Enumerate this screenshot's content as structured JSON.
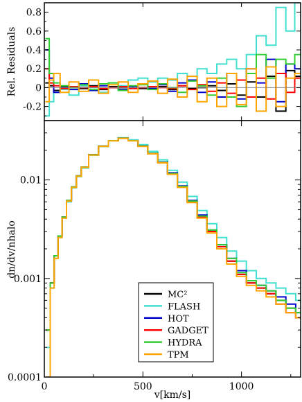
{
  "chart_data": [
    {
      "type": "line",
      "panel": "top",
      "xlabel": "",
      "ylabel": "Rel. Residuals",
      "xlim": [
        0,
        1300
      ],
      "ylim": [
        -0.35,
        0.9
      ],
      "yticks": [
        -0.2,
        0,
        0.2,
        0.4,
        0.6,
        0.8
      ],
      "ytick_labels": [
        "-0.2",
        "0",
        "0.2",
        "0.4",
        "0.6",
        "0.8"
      ],
      "step": true,
      "x": [
        15,
        35,
        60,
        100,
        150,
        200,
        250,
        300,
        350,
        400,
        450,
        500,
        550,
        600,
        650,
        700,
        750,
        800,
        850,
        900,
        950,
        1000,
        1050,
        1100,
        1150,
        1200,
        1250,
        1290
      ],
      "series": [
        {
          "name": "MC²",
          "color": "#000000",
          "values": [
            0.05,
            0.02,
            -0.03,
            0.01,
            0.0,
            -0.01,
            0.02,
            -0.02,
            0.01,
            0.0,
            0.01,
            -0.01,
            0.0,
            0.01,
            -0.02,
            0.02,
            -0.01,
            0.0,
            0.02,
            -0.03,
            0.04,
            -0.08,
            0.06,
            -0.1,
            0.12,
            -0.25,
            0.18,
            0.12
          ]
        },
        {
          "name": "FLASH",
          "color": "#40E0D0",
          "values": [
            -0.3,
            -0.15,
            -0.05,
            -0.02,
            -0.08,
            0.02,
            0.0,
            -0.05,
            0.05,
            0.02,
            0.08,
            0.1,
            0.06,
            0.1,
            0.08,
            0.15,
            0.12,
            0.2,
            0.15,
            0.25,
            0.3,
            0.2,
            0.35,
            0.55,
            0.45,
            0.85,
            0.6,
            0.9
          ]
        },
        {
          "name": "HOT",
          "color": "#0000CD",
          "values": [
            0.4,
            0.1,
            -0.05,
            0.0,
            -0.02,
            0.04,
            -0.03,
            0.02,
            0.0,
            -0.02,
            0.01,
            0.0,
            -0.01,
            0.03,
            -0.04,
            0.05,
            0.08,
            -0.05,
            0.06,
            -0.1,
            0.15,
            -0.12,
            0.2,
            0.05,
            0.3,
            -0.15,
            0.25,
            0.2
          ]
        },
        {
          "name": "GADGET",
          "color": "#FF0000",
          "values": [
            0.2,
            0.05,
            0.02,
            -0.01,
            0.01,
            0.0,
            0.01,
            -0.01,
            0.0,
            0.01,
            -0.01,
            0.0,
            0.01,
            0.0,
            -0.01,
            0.02,
            -0.02,
            0.03,
            -0.04,
            0.05,
            -0.06,
            0.08,
            -0.1,
            0.1,
            -0.12,
            0.15,
            -0.05,
            0.1
          ]
        },
        {
          "name": "HYDRA",
          "color": "#32CD32",
          "values": [
            0.52,
            0.15,
            0.05,
            0.02,
            0.0,
            0.03,
            -0.02,
            0.04,
            0.05,
            -0.03,
            0.02,
            0.03,
            -0.02,
            0.04,
            0.0,
            -0.05,
            0.07,
            0.02,
            -0.08,
            0.1,
            -0.1,
            -0.2,
            0.15,
            0.35,
            0.1,
            0.3,
            0.25,
            0.35
          ]
        },
        {
          "name": "TPM",
          "color": "#FFA500",
          "values": [
            -0.15,
            0.08,
            0.15,
            -0.05,
            0.06,
            -0.04,
            0.08,
            -0.06,
            0.03,
            0.06,
            -0.05,
            0.04,
            0.07,
            -0.06,
            0.09,
            -0.1,
            0.12,
            -0.15,
            0.1,
            -0.2,
            0.15,
            -0.18,
            0.2,
            -0.25,
            0.22,
            -0.2,
            0.1,
            0.15
          ]
        }
      ]
    },
    {
      "type": "line",
      "panel": "bottom",
      "xlabel": "v[km/s]",
      "ylabel": "dn/dv/nhalo",
      "xlim": [
        0,
        1300
      ],
      "ylim": [
        0.0001,
        0.04
      ],
      "yscale": "log",
      "xticks": [
        0,
        500,
        1000
      ],
      "xtick_labels": [
        "0",
        "500",
        "1000"
      ],
      "yticks": [
        0.0001,
        0.001,
        0.01
      ],
      "ytick_labels": [
        "0.0001",
        "0.001",
        "0.01"
      ],
      "step": true,
      "legend": "bottom-center",
      "x": [
        20,
        40,
        60,
        80,
        100,
        125,
        150,
        175,
        200,
        250,
        300,
        350,
        400,
        450,
        500,
        550,
        600,
        650,
        700,
        750,
        800,
        850,
        900,
        950,
        1000,
        1050,
        1100,
        1150,
        1200,
        1250,
        1300
      ],
      "series": [
        {
          "name": "MC²",
          "color": "#000000",
          "values": [
            0.0003,
            0.0009,
            0.0017,
            0.0027,
            0.0042,
            0.0062,
            0.0085,
            0.011,
            0.0135,
            0.018,
            0.022,
            0.025,
            0.0265,
            0.025,
            0.022,
            0.0185,
            0.015,
            0.0115,
            0.0085,
            0.006,
            0.0042,
            0.003,
            0.0021,
            0.0015,
            0.0011,
            0.0009,
            0.0008,
            0.0007,
            0.0006,
            0.0005,
            0.0004
          ]
        },
        {
          "name": "FLASH",
          "color": "#40E0D0",
          "values": [
            0.0002,
            0.0008,
            0.0016,
            0.0026,
            0.0041,
            0.006,
            0.0083,
            0.0108,
            0.0132,
            0.0178,
            0.0218,
            0.025,
            0.0268,
            0.0255,
            0.0228,
            0.0195,
            0.016,
            0.0125,
            0.0095,
            0.0068,
            0.0049,
            0.0036,
            0.0026,
            0.0019,
            0.0015,
            0.0012,
            0.001,
            0.0009,
            0.0008,
            0.0007,
            0.0006
          ]
        },
        {
          "name": "HOT",
          "color": "#0000CD",
          "values": [
            0.0003,
            0.0009,
            0.0017,
            0.0027,
            0.0042,
            0.0062,
            0.0085,
            0.011,
            0.0135,
            0.018,
            0.022,
            0.025,
            0.0265,
            0.025,
            0.0222,
            0.0187,
            0.0152,
            0.0118,
            0.0087,
            0.0062,
            0.0044,
            0.0031,
            0.0022,
            0.0016,
            0.0012,
            0.00095,
            0.00085,
            0.00075,
            0.00065,
            0.00055,
            0.00045
          ]
        },
        {
          "name": "GADGET",
          "color": "#FF0000",
          "values": [
            0.0003,
            0.0009,
            0.0017,
            0.0027,
            0.0042,
            0.0062,
            0.0085,
            0.011,
            0.0135,
            0.018,
            0.022,
            0.025,
            0.0265,
            0.025,
            0.022,
            0.0185,
            0.015,
            0.0115,
            0.0085,
            0.006,
            0.0042,
            0.003,
            0.0021,
            0.0015,
            0.0011,
            0.0009,
            0.0008,
            0.0007,
            0.00055,
            0.00045,
            0.0004
          ]
        },
        {
          "name": "HYDRA",
          "color": "#32CD32",
          "values": [
            0.0003,
            0.0009,
            0.0017,
            0.0027,
            0.0042,
            0.0062,
            0.0085,
            0.011,
            0.0135,
            0.018,
            0.022,
            0.025,
            0.0265,
            0.025,
            0.0221,
            0.0186,
            0.0151,
            0.0116,
            0.0086,
            0.0061,
            0.0043,
            0.0031,
            0.0022,
            0.0016,
            0.00115,
            0.00095,
            0.00085,
            0.00075,
            0.0006,
            0.0005,
            0.00045
          ]
        },
        {
          "name": "TPM",
          "color": "#FFA500",
          "values": [
            0.0001,
            0.0008,
            0.0016,
            0.0026,
            0.0041,
            0.0061,
            0.0084,
            0.0109,
            0.0134,
            0.0179,
            0.0219,
            0.0249,
            0.0264,
            0.0249,
            0.0219,
            0.0184,
            0.0149,
            0.0114,
            0.0084,
            0.0059,
            0.0041,
            0.0029,
            0.002,
            0.0014,
            0.00105,
            0.00085,
            0.00075,
            0.00065,
            0.00055,
            0.00045,
            0.0004
          ]
        }
      ]
    }
  ]
}
